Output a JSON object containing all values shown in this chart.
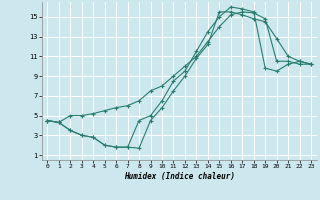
{
  "xlabel": "Humidex (Indice chaleur)",
  "bg_color": "#cce8ee",
  "grid_color": "#ffffff",
  "line_color": "#2a7d6e",
  "marker_color": "#2a7d6e",
  "line1_x": [
    0,
    1,
    2,
    3,
    4,
    5,
    6,
    7,
    8,
    9,
    10,
    11,
    12,
    13,
    14,
    15,
    16,
    17,
    18,
    19,
    20,
    21,
    22,
    23
  ],
  "line1_y": [
    4.5,
    4.3,
    5.0,
    5.0,
    5.2,
    5.5,
    5.8,
    6.0,
    6.5,
    7.5,
    8.0,
    9.0,
    10.0,
    11.0,
    12.5,
    14.0,
    15.2,
    15.5,
    15.4,
    14.8,
    10.5,
    10.5,
    10.2,
    10.2
  ],
  "line2_x": [
    0,
    1,
    2,
    3,
    4,
    5,
    6,
    7,
    8,
    9,
    10,
    11,
    12,
    13,
    14,
    15,
    16,
    17,
    18,
    19,
    20,
    21,
    22,
    23
  ],
  "line2_y": [
    4.5,
    4.3,
    3.5,
    3.0,
    2.8,
    2.0,
    1.8,
    1.8,
    1.7,
    4.5,
    5.8,
    7.5,
    9.0,
    10.8,
    12.2,
    15.5,
    15.5,
    15.2,
    14.8,
    14.5,
    12.8,
    11.0,
    10.5,
    10.2
  ],
  "line3_x": [
    0,
    1,
    2,
    3,
    4,
    5,
    6,
    7,
    8,
    9,
    10,
    11,
    12,
    13,
    14,
    15,
    16,
    17,
    18,
    19,
    20,
    21,
    22,
    23
  ],
  "line3_y": [
    4.5,
    4.3,
    3.5,
    3.0,
    2.8,
    2.0,
    1.8,
    1.8,
    4.5,
    5.0,
    6.5,
    8.5,
    9.5,
    11.5,
    13.5,
    15.0,
    16.0,
    15.8,
    15.5,
    9.8,
    9.5,
    10.2,
    10.5,
    10.2
  ],
  "xlim": [
    -0.5,
    23.5
  ],
  "ylim": [
    0.5,
    16.5
  ],
  "xticks": [
    0,
    1,
    2,
    3,
    4,
    5,
    6,
    7,
    8,
    9,
    10,
    11,
    12,
    13,
    14,
    15,
    16,
    17,
    18,
    19,
    20,
    21,
    22,
    23
  ],
  "yticks": [
    1,
    3,
    5,
    7,
    9,
    11,
    13,
    15
  ]
}
